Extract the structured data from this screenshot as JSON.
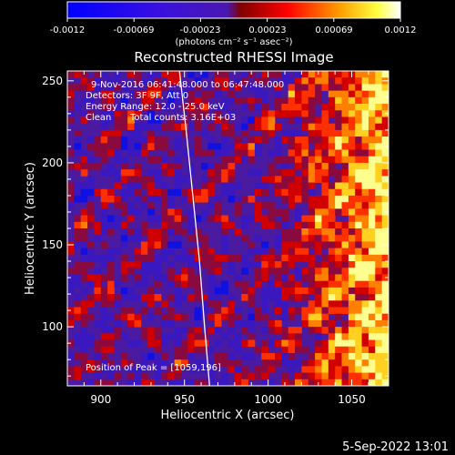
{
  "colorbar": {
    "ticks": [
      "-0.0012",
      "-0.00069",
      "-0.00023",
      "0.00023",
      "0.00069",
      "0.0012"
    ],
    "unit_label": "(photons cm⁻² s⁻¹ asec⁻²)",
    "min": -0.0012,
    "max": 0.0012
  },
  "chart_data": {
    "type": "heatmap",
    "title": "Reconstructed RHESSI Image",
    "xlabel": "Heliocentric X (arcsec)",
    "ylabel": "Heliocentric Y (arcsec)",
    "xlim": [
      880,
      1072
    ],
    "ylim": [
      64,
      256
    ],
    "xticks": [
      900,
      950,
      1000,
      1050
    ],
    "yticks": [
      100,
      150,
      200,
      250
    ],
    "annotations": [
      "9-Nov-2016 06:41:48.000 to 06:47:48.000",
      "Detectors: 3F 9F, Att 0",
      "Energy Range: 12.0 - 25.0 keV",
      "Clean",
      "Total counts: 3.16E+03"
    ],
    "peak_label": "Position of Peak = [1059,196]",
    "peak_position": [
      1059,
      196
    ],
    "limb_curve": {
      "x": [
        947,
        951,
        955,
        959,
        962,
        965
      ],
      "y": [
        256,
        220,
        180,
        140,
        100,
        64
      ]
    },
    "colormap": [
      "#0000ff",
      "#5a22b8",
      "#ff0000",
      "#ffff00",
      "#ffffff"
    ]
  },
  "footer": {
    "date": "5-Sep-2022 13:01"
  }
}
